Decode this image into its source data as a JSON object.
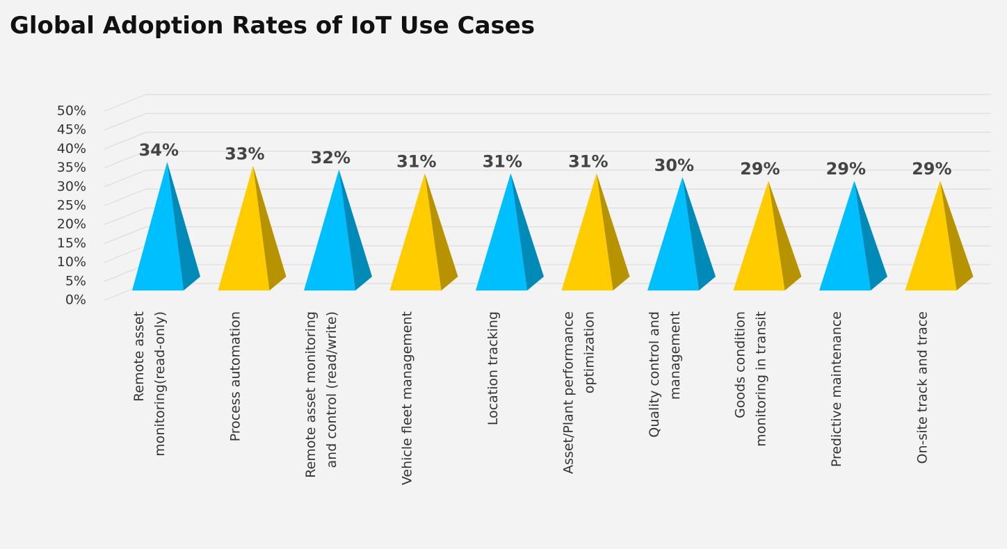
{
  "chart_data": {
    "type": "pyramid",
    "title": "Global Adoption Rates of IoT Use Cases",
    "categories": [
      "Remote asset monitoring(read-only)",
      "Process automation",
      "Remote asset monitoring and control (read/write)",
      "Vehicle fleet management",
      "Location tracking",
      "Asset/Plant performance optimization",
      "Quality control and management",
      "Goods condition monitoring in transit",
      "Predictive maintenance",
      "On-site track and trace"
    ],
    "values": [
      34,
      33,
      32,
      31,
      31,
      31,
      30,
      29,
      29,
      29
    ],
    "value_labels": [
      "34%",
      "33%",
      "32%",
      "31%",
      "31%",
      "31%",
      "30%",
      "29%",
      "29%",
      "29%"
    ],
    "colors": [
      "#00bfff",
      "#ffcc00",
      "#00bfff",
      "#ffcc00",
      "#00bfff",
      "#ffcc00",
      "#00bfff",
      "#ffcc00",
      "#00bfff",
      "#ffcc00"
    ],
    "ylim": [
      0,
      50
    ],
    "yticks": [
      {
        "value": 0,
        "label": "0%"
      },
      {
        "value": 5,
        "label": "5%"
      },
      {
        "value": 10,
        "label": "10%"
      },
      {
        "value": 15,
        "label": "15%"
      },
      {
        "value": 20,
        "label": "20%"
      },
      {
        "value": 25,
        "label": "25%"
      },
      {
        "value": 30,
        "label": "30%"
      },
      {
        "value": 35,
        "label": "35%"
      },
      {
        "value": 40,
        "label": "40%"
      },
      {
        "value": 45,
        "label": "45%"
      },
      {
        "value": 50,
        "label": "50%"
      }
    ],
    "grid": true
  }
}
